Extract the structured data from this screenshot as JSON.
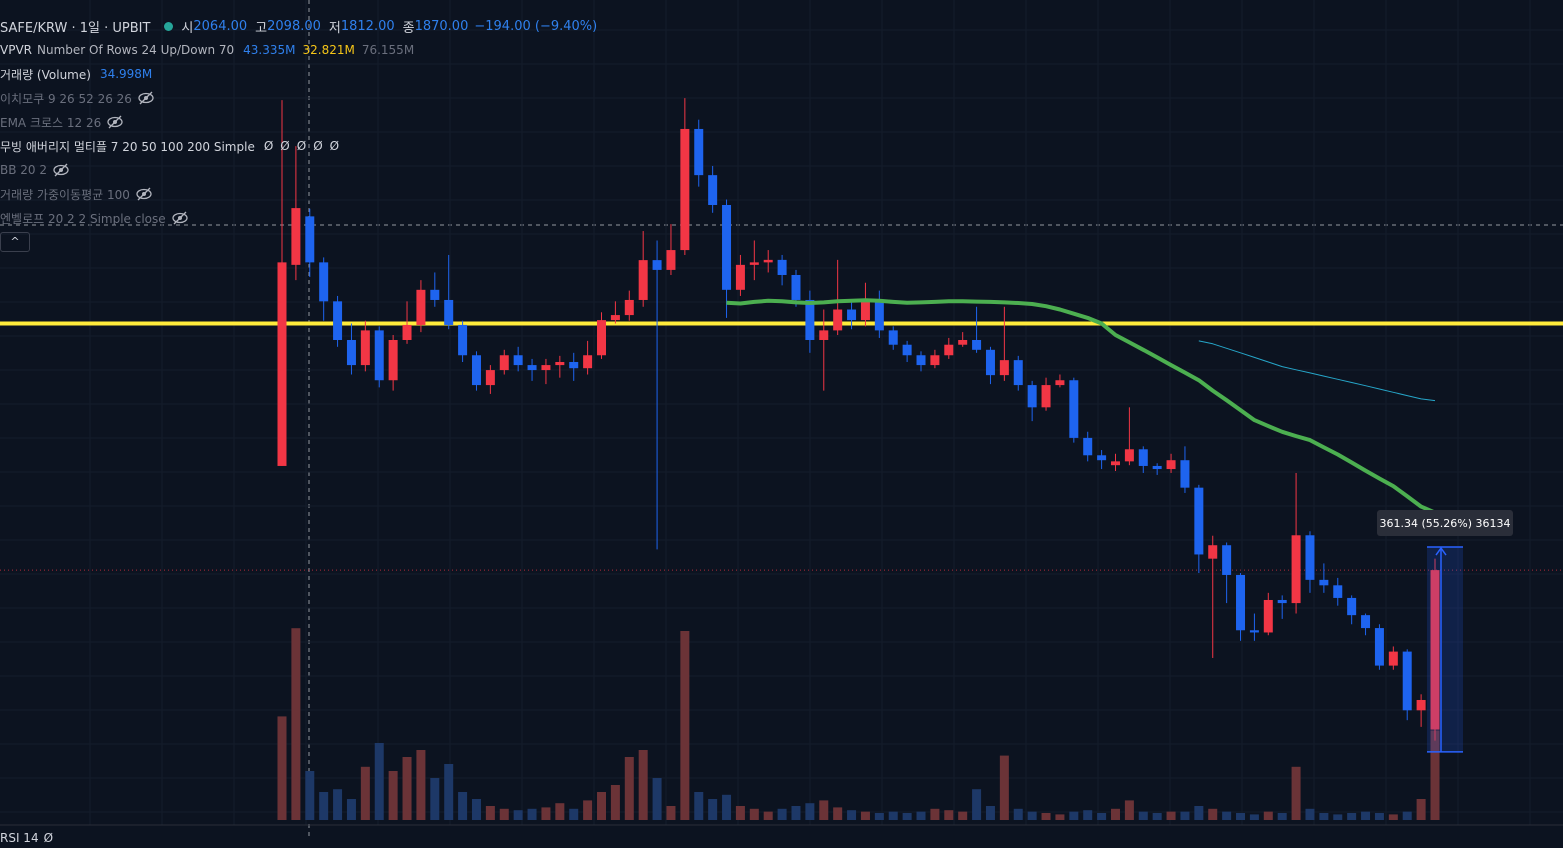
{
  "header": {
    "symbol": "SAFE/KRW · 1일 · UPBIT",
    "open_label": "시",
    "open": "2064.00",
    "high_label": "고",
    "high": "2098.00",
    "low_label": "저",
    "low": "1812.00",
    "close_label": "종",
    "close": "1870.00",
    "change": "−194.00 (−9.40%)"
  },
  "indicators": [
    {
      "name": "VPVR",
      "params": "Number Of Rows 24 Up/Down 70",
      "values": [
        "43.335M",
        "32.821M",
        "76.155M"
      ],
      "hidden": false
    },
    {
      "name": "거래량 (Volume)",
      "values": [
        "34.998M"
      ],
      "hidden": false
    },
    {
      "name": "이치모쿠 9 26 52 26 26",
      "hidden": true
    },
    {
      "name": "EMA 크로스 12 26",
      "hidden": true
    },
    {
      "name": "무빙 애버리지 멀티플 7 20 50 100 200 Simple",
      "values": [
        "Ø",
        "Ø",
        "Ø",
        "Ø",
        "Ø"
      ],
      "hidden": false
    },
    {
      "name": "BB 20 2",
      "hidden": true
    },
    {
      "name": "거래량 가중이동평균 100",
      "hidden": true
    },
    {
      "name": "엔벨로프 20 2 2 Simple close",
      "hidden": true
    }
  ],
  "collapse_button": "^",
  "rsi": {
    "name": "RSI 14",
    "value": "Ø"
  },
  "chart_data": {
    "type": "candlestick",
    "log_scale": true,
    "ylim": [
      565,
      3284
    ],
    "volume_ylim": [
      0,
      140
    ],
    "up_color": "#f23645",
    "down_color": "#1e64ef",
    "up_volume_color": "#6b3337",
    "down_volume_color": "#1d3867",
    "open": [
      1208,
      1860,
      2064,
      1870,
      1720,
      1583,
      1500,
      1616,
      1452,
      1583,
      1635,
      1763,
      1725,
      1635,
      1532,
      1437,
      1484,
      1532,
      1500,
      1484,
      1500,
      1510,
      1490,
      1532,
      1652,
      1670,
      1725,
      1879,
      1840,
      1920,
      2490,
      2255,
      2115,
      1763,
      1860,
      1870,
      1880,
      1820,
      1725,
      1583,
      1616,
      1690,
      1652,
      1725,
      1616,
      1567,
      1532,
      1500,
      1532,
      1567,
      1583,
      1550,
      1468,
      1516,
      1437,
      1370,
      1437,
      1452,
      1283,
      1236,
      1210,
      1220,
      1252,
      1208,
      1200,
      1223,
      1153,
      990,
      1019,
      956,
      849,
      845,
      906,
      900,
      1041,
      946,
      935,
      910,
      877,
      853,
      787,
      811,
      715,
      686
    ],
    "high": [
      2649,
      2400,
      2098,
      1890,
      1740,
      1640,
      1650,
      1630,
      1600,
      1720,
      1800,
      1830,
      1900,
      1650,
      1545,
      1500,
      1550,
      1560,
      1520,
      1520,
      1530,
      1540,
      1580,
      1680,
      1720,
      1760,
      2000,
      1960,
      2030,
      2660,
      2540,
      2300,
      2140,
      1900,
      1960,
      1920,
      1900,
      1840,
      1760,
      1690,
      1880,
      1720,
      1790,
      1760,
      1630,
      1580,
      1545,
      1550,
      1590,
      1610,
      1700,
      1560,
      1700,
      1530,
      1450,
      1460,
      1470,
      1460,
      1300,
      1250,
      1240,
      1370,
      1260,
      1215,
      1240,
      1260,
      1160,
      1040,
      1025,
      960,
      880,
      920,
      915,
      1190,
      1050,
      980,
      950,
      915,
      880,
      860,
      820,
      815,
      740,
      990
    ],
    "low": [
      1208,
      1800,
      1812,
      1650,
      1560,
      1470,
      1480,
      1430,
      1420,
      1570,
      1610,
      1700,
      1620,
      1510,
      1420,
      1410,
      1470,
      1480,
      1450,
      1440,
      1460,
      1450,
      1470,
      1520,
      1640,
      1650,
      1700,
      1010,
      1820,
      1900,
      2200,
      2080,
      1660,
      1740,
      1800,
      1830,
      1780,
      1700,
      1540,
      1420,
      1600,
      1620,
      1630,
      1590,
      1550,
      1510,
      1480,
      1490,
      1520,
      1560,
      1540,
      1440,
      1450,
      1420,
      1330,
      1360,
      1430,
      1270,
      1220,
      1200,
      1195,
      1210,
      1190,
      1185,
      1190,
      1140,
      960,
      800,
      900,
      830,
      830,
      840,
      870,
      880,
      920,
      920,
      895,
      860,
      840,
      780,
      780,
      700,
      690,
      670
    ],
    "close": [
      1870,
      2101,
      1870,
      1720,
      1583,
      1500,
      1616,
      1452,
      1583,
      1635,
      1763,
      1725,
      1635,
      1532,
      1437,
      1484,
      1532,
      1500,
      1484,
      1500,
      1510,
      1490,
      1532,
      1652,
      1670,
      1725,
      1879,
      1840,
      1920,
      2490,
      2255,
      2115,
      1763,
      1860,
      1870,
      1880,
      1820,
      1725,
      1583,
      1616,
      1690,
      1652,
      1725,
      1616,
      1567,
      1532,
      1500,
      1532,
      1567,
      1583,
      1550,
      1468,
      1516,
      1437,
      1370,
      1437,
      1452,
      1283,
      1236,
      1223,
      1220,
      1252,
      1208,
      1200,
      1223,
      1153,
      999,
      1019,
      956,
      849,
      845,
      906,
      900,
      1041,
      946,
      935,
      910,
      877,
      853,
      787,
      811,
      715,
      731,
      966
    ],
    "volume": [
      74,
      137,
      35,
      20,
      22,
      15,
      38,
      55,
      35,
      45,
      50,
      30,
      40,
      20,
      15,
      10,
      8,
      7,
      8,
      9,
      12,
      8,
      14,
      20,
      25,
      45,
      50,
      30,
      10,
      135,
      20,
      15,
      18,
      10,
      8,
      6,
      8,
      10,
      12,
      14,
      9,
      7,
      6,
      5,
      6,
      5,
      6,
      8,
      7,
      6,
      22,
      10,
      46,
      8,
      6,
      5,
      4,
      6,
      7,
      5,
      8,
      14,
      6,
      5,
      6,
      6,
      10,
      8,
      6,
      5,
      4,
      6,
      5,
      38,
      8,
      5,
      4,
      5,
      6,
      5,
      4,
      6,
      15,
      64
    ],
    "lines": [
      {
        "color": "#4caf50",
        "width": 4,
        "values": [
          null,
          null,
          null,
          null,
          null,
          null,
          null,
          null,
          null,
          null,
          null,
          null,
          null,
          null,
          null,
          null,
          null,
          null,
          null,
          null,
          null,
          null,
          null,
          null,
          null,
          null,
          null,
          null,
          null,
          null,
          null,
          null,
          1715,
          1712,
          1718,
          1722,
          1720,
          1716,
          1714,
          1716,
          1720,
          1722,
          1724,
          1722,
          1718,
          1715,
          1716,
          1718,
          1720,
          1720,
          1719,
          1718,
          1716,
          1714,
          1710,
          1702,
          1690,
          1675,
          1660,
          1640,
          1600,
          1575,
          1550,
          1525,
          1500,
          1476,
          1452,
          1420,
          1391,
          1362,
          1333,
          1316,
          1300,
          1288,
          1277,
          1257,
          1238,
          1217,
          1196,
          1176,
          1157,
          1132,
          1107,
          1093
        ]
      },
      {
        "color": "#26a6c9",
        "width": 1,
        "values": [
          null,
          null,
          null,
          null,
          null,
          null,
          null,
          null,
          null,
          null,
          null,
          null,
          null,
          null,
          null,
          null,
          null,
          null,
          null,
          null,
          null,
          null,
          null,
          null,
          null,
          null,
          null,
          null,
          null,
          null,
          null,
          null,
          null,
          null,
          null,
          null,
          null,
          null,
          null,
          null,
          null,
          null,
          null,
          null,
          null,
          null,
          null,
          null,
          null,
          null,
          null,
          null,
          null,
          null,
          null,
          null,
          null,
          null,
          null,
          null,
          null,
          null,
          null,
          null,
          null,
          null,
          1580,
          1570,
          1555,
          1540,
          1525,
          1510,
          1495,
          1485,
          1475,
          1465,
          1455,
          1445,
          1435,
          1425,
          1415,
          1405,
          1395,
          1390
        ]
      }
    ],
    "horizontal_line": {
      "value": 1640,
      "color": "#ffeb3b"
    },
    "measure": {
      "label": "361.34 (55.26%) 36134",
      "from": 654,
      "to": 1015,
      "color": "#2962ff"
    }
  }
}
